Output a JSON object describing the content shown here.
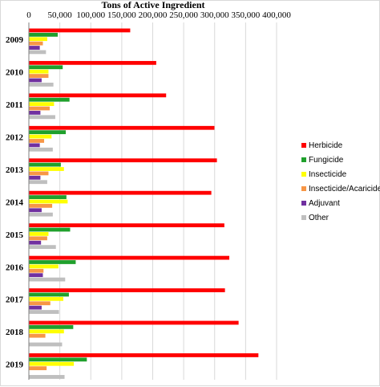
{
  "chart_data": {
    "type": "bar",
    "orientation": "horizontal",
    "title": "Tons of Active Ingredient",
    "xlabel": "",
    "ylabel": "",
    "xlim": [
      0,
      400000
    ],
    "x_ticks": [
      0,
      50000,
      100000,
      150000,
      200000,
      250000,
      300000,
      350000,
      400000
    ],
    "x_tick_labels": [
      "0",
      "50,000",
      "100,000",
      "150,000",
      "200,000",
      "250,000",
      "300,000",
      "350,000",
      "400,000"
    ],
    "x_axis_position": "top",
    "grid": true,
    "legend_position": "right",
    "categories": [
      "2009",
      "2010",
      "2011",
      "2012",
      "2013",
      "2014",
      "2015",
      "2016",
      "2017",
      "2018",
      "2019"
    ],
    "series": [
      {
        "name": "Herbicide",
        "color": "#ff0000",
        "values": [
          163000,
          205000,
          221000,
          299000,
          303000,
          294000,
          315000,
          323000,
          316000,
          338000,
          370000
        ]
      },
      {
        "name": "Fungicide",
        "color": "#1fa02c",
        "values": [
          46000,
          54000,
          65000,
          59000,
          51000,
          60000,
          66000,
          75000,
          64000,
          71000,
          93000
        ]
      },
      {
        "name": "Insecticide",
        "color": "#ffff00",
        "values": [
          29000,
          31000,
          40000,
          36000,
          56000,
          62000,
          31000,
          47000,
          55000,
          56000,
          72000
        ]
      },
      {
        "name": "Insecticide/Acaricide",
        "color": "#f79646",
        "values": [
          22000,
          31000,
          33000,
          24000,
          31000,
          37000,
          29000,
          23000,
          34000,
          26000,
          28000
        ]
      },
      {
        "name": "Adjuvant",
        "color": "#7030a0",
        "values": [
          17000,
          20000,
          18000,
          17000,
          18000,
          20000,
          19000,
          22000,
          20000,
          0,
          0
        ]
      },
      {
        "name": "Other",
        "color": "#bfbfbf",
        "values": [
          27000,
          39000,
          42000,
          38000,
          29000,
          38000,
          43000,
          58000,
          48000,
          53000,
          57000
        ]
      }
    ]
  }
}
